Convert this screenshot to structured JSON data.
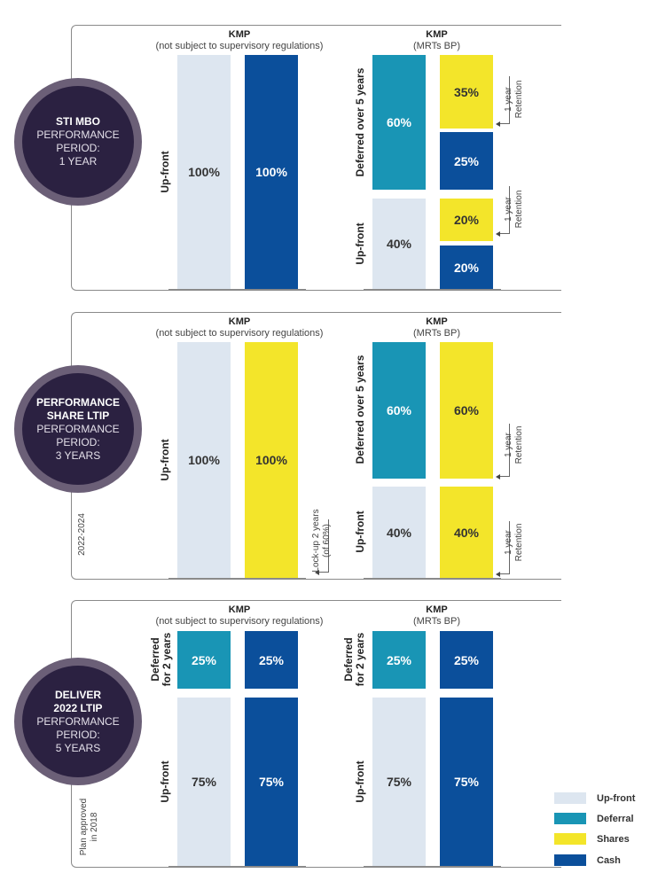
{
  "headers": {
    "kmp": "KMP",
    "not_subject": "(not subject to supervisory regulations)",
    "mrts": "(MRTs BP)"
  },
  "labels": {
    "upfront": "Up-front",
    "deferred_5": "Deferred over 5 years",
    "deferred_2_line1": "Deferred",
    "deferred_2_line2": "for 2 years",
    "retention_line1": "1 year",
    "retention_line2": "Retention",
    "lockup_line1": "Lock-up 2 years",
    "lockup_line2": "(of 60%)"
  },
  "sections": [
    {
      "title_lines": [
        "STI MBO"
      ],
      "period_lines": [
        "PERFORMANCE",
        "PERIOD:",
        "1 YEAR"
      ],
      "side_note_lines": []
    },
    {
      "title_lines": [
        "PERFORMANCE",
        "SHARE LTIP"
      ],
      "period_lines": [
        "PERFORMANCE",
        "PERIOD:",
        "3 YEARS"
      ],
      "side_note_lines": [
        "2022-2024"
      ]
    },
    {
      "title_lines": [
        "DELIVER",
        "2022 LTIP"
      ],
      "period_lines": [
        "PERFORMANCE",
        "PERIOD:",
        "5 YEARS"
      ],
      "side_note_lines": [
        "Plan approved",
        "in 2018"
      ]
    }
  ],
  "values": {
    "s1": {
      "kmp_upfront": "100%",
      "kmp_cash": "100%",
      "mrt_deferral": "60%",
      "mrt_shares_def": "35%",
      "mrt_cash_def": "25%",
      "mrt_upfront": "40%",
      "mrt_shares_up": "20%",
      "mrt_cash_up": "20%"
    },
    "s2": {
      "kmp_upfront": "100%",
      "kmp_shares": "100%",
      "mrt_deferral": "60%",
      "mrt_shares_def": "60%",
      "mrt_upfront": "40%",
      "mrt_shares_up": "40%"
    },
    "s3": {
      "kmp_deferral": "25%",
      "kmp_cash_def": "25%",
      "kmp_upfront": "75%",
      "kmp_cash_up": "75%",
      "mrt_deferral": "25%",
      "mrt_cash_def": "25%",
      "mrt_upfront": "75%",
      "mrt_cash_up": "75%"
    }
  },
  "legend": [
    {
      "label": "Up-front",
      "color": "#dde6f0"
    },
    {
      "label": "Deferral",
      "color": "#1995b5"
    },
    {
      "label": "Shares",
      "color": "#f3e52a"
    },
    {
      "label": "Cash",
      "color": "#0b4f9b"
    }
  ]
}
